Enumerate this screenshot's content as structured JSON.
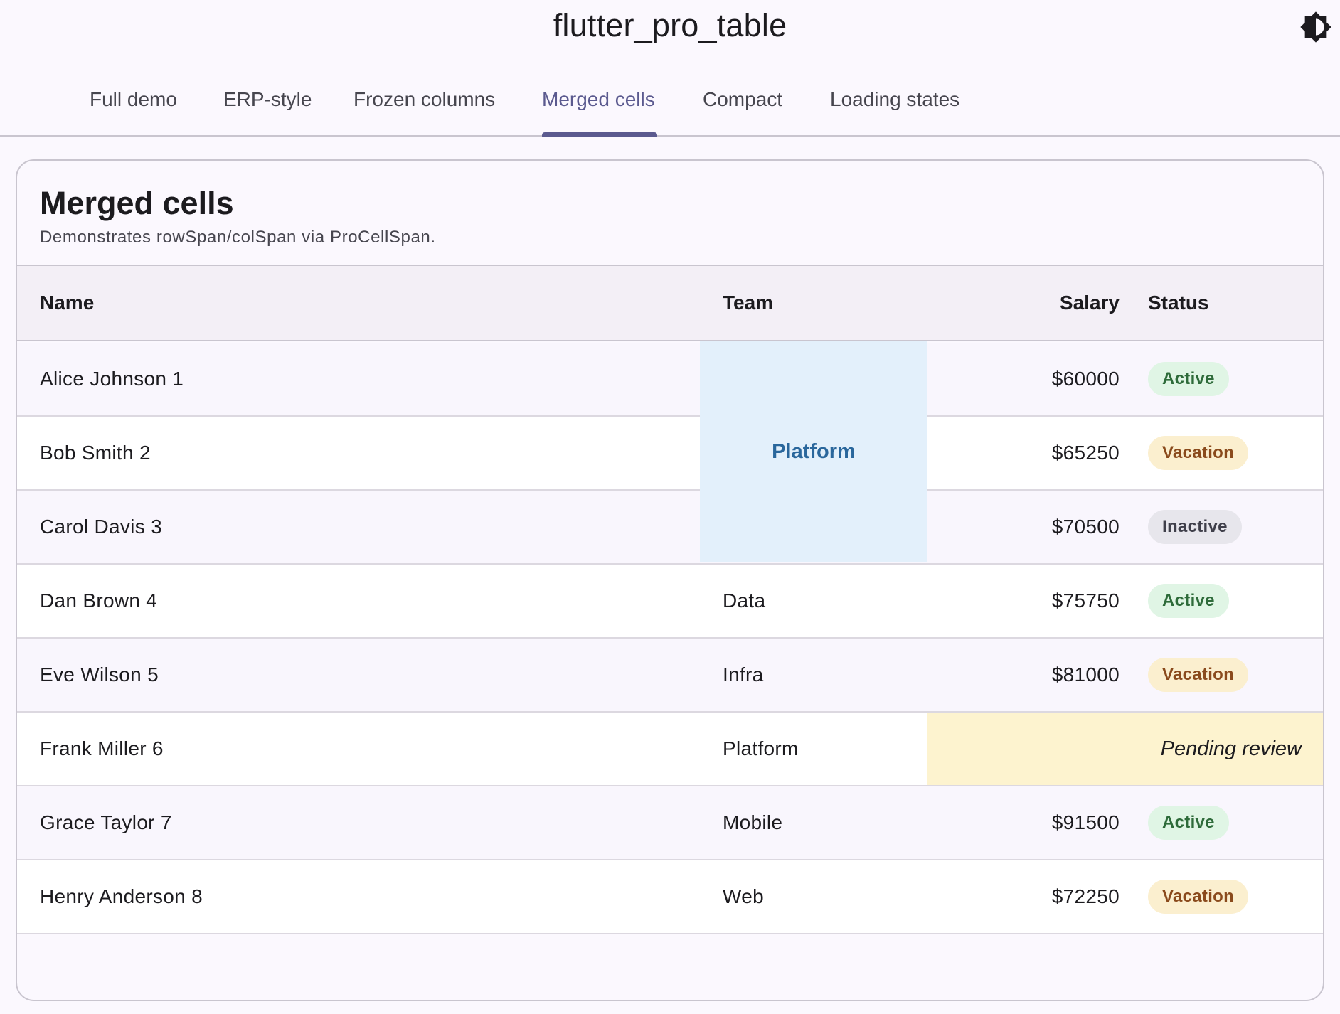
{
  "app": {
    "title": "flutter_pro_table",
    "theme_icon": "brightness-icon"
  },
  "tabs": [
    {
      "label": "Full demo",
      "active": false
    },
    {
      "label": "ERP-style",
      "active": false
    },
    {
      "label": "Frozen columns",
      "active": false
    },
    {
      "label": "Merged cells",
      "active": true
    },
    {
      "label": "Compact",
      "active": false
    },
    {
      "label": "Loading states",
      "active": false
    }
  ],
  "card": {
    "title": "Merged cells",
    "subtitle": "Demonstrates rowSpan/colSpan via ProCellSpan."
  },
  "table": {
    "columns": [
      "Name",
      "Team",
      "Salary",
      "Status"
    ],
    "rows": [
      {
        "name": "Alice Johnson 1",
        "team": "",
        "salary": "$60000",
        "status": "Active"
      },
      {
        "name": "Bob Smith 2",
        "team": "",
        "salary": "$65250",
        "status": "Vacation"
      },
      {
        "name": "Carol Davis 3",
        "team": "",
        "salary": "$70500",
        "status": "Inactive"
      },
      {
        "name": "Dan Brown 4",
        "team": "Data",
        "salary": "$75750",
        "status": "Active"
      },
      {
        "name": "Eve Wilson 5",
        "team": "Infra",
        "salary": "$81000",
        "status": "Vacation"
      },
      {
        "name": "Frank Miller 6",
        "team": "Platform",
        "salary": "",
        "status": ""
      },
      {
        "name": "Grace Taylor 7",
        "team": "Mobile",
        "salary": "$91500",
        "status": "Active"
      },
      {
        "name": "Henry Anderson 8",
        "team": "Web",
        "salary": "$72250",
        "status": "Vacation"
      }
    ],
    "merged_team_label": "Platform",
    "merged_status_label": "Pending review"
  },
  "colors": {
    "accent": "#5b5a8f",
    "merged_team_bg": "#e3f0fb",
    "merged_status_bg": "#fdf3cf",
    "status": {
      "Active": {
        "bg": "#e0f5e5",
        "fg": "#2e6b3a"
      },
      "Vacation": {
        "bg": "#fbefcf",
        "fg": "#8a4a1c"
      },
      "Inactive": {
        "bg": "#e7e6ec",
        "fg": "#3f3f4a"
      }
    }
  }
}
